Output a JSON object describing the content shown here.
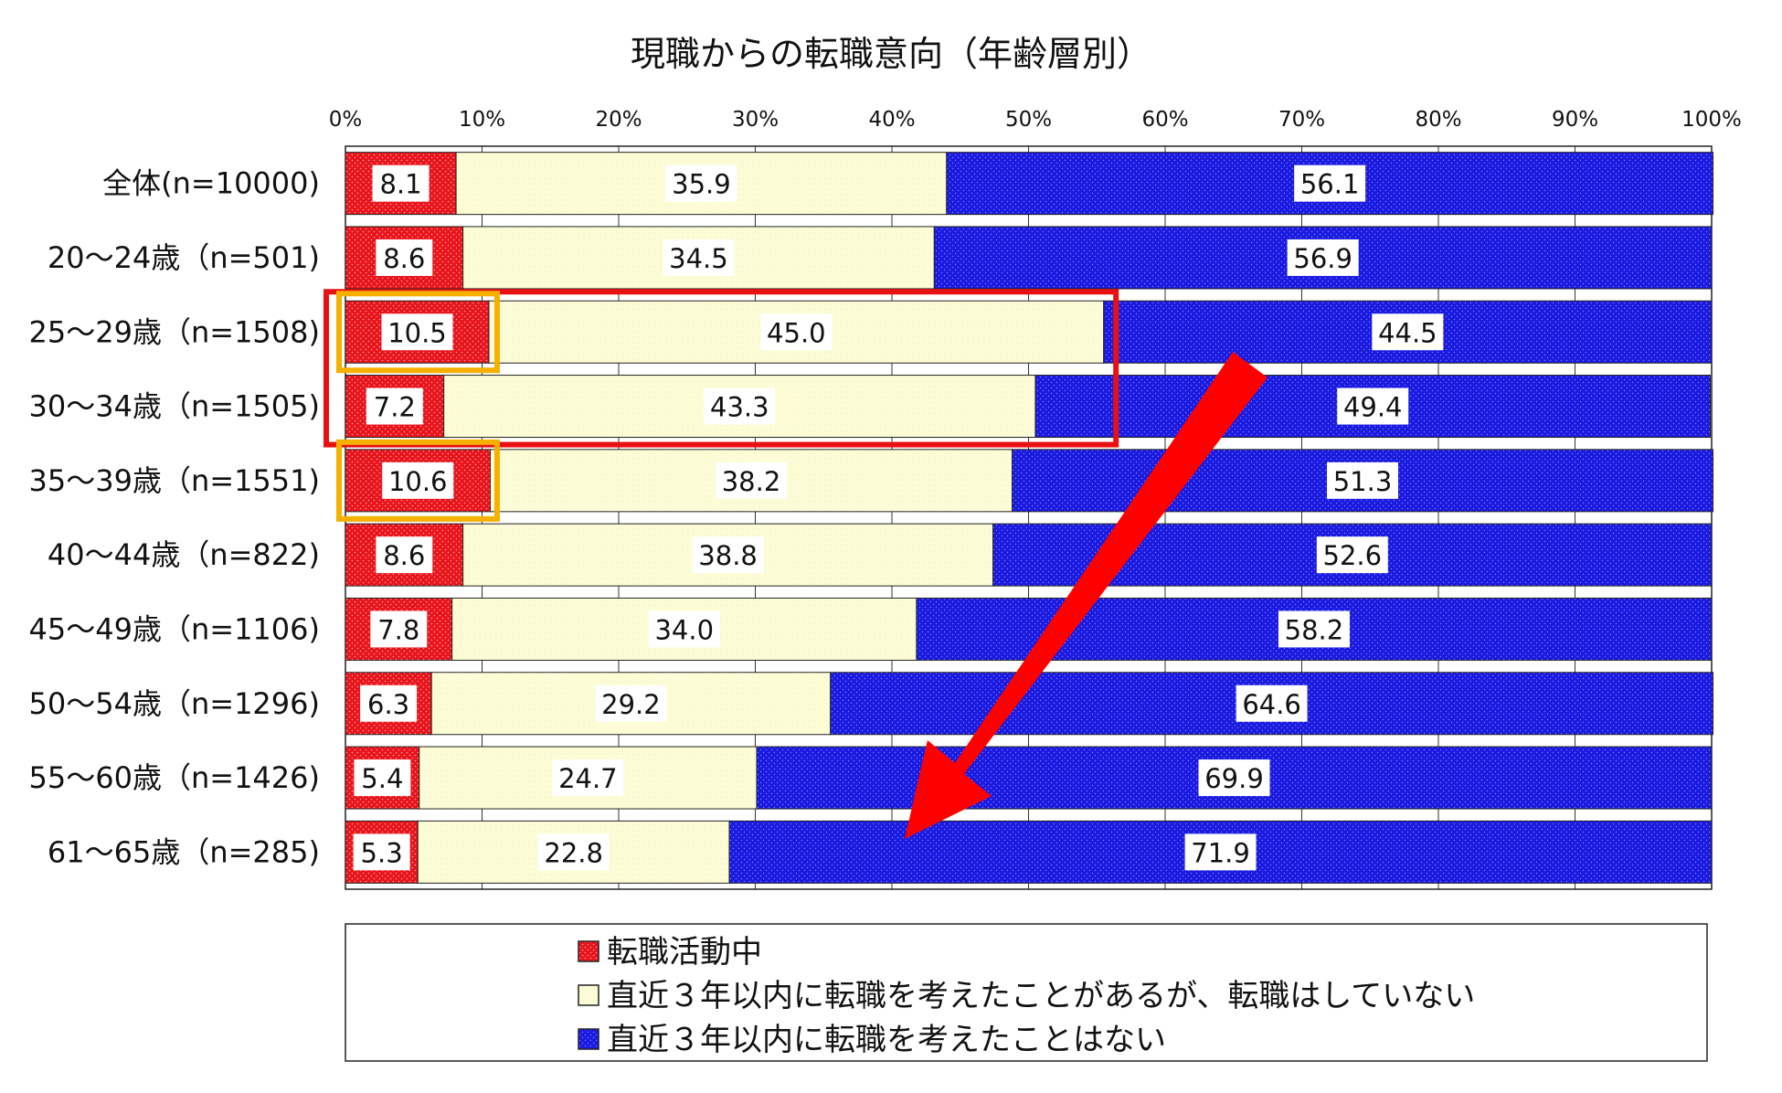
{
  "chart_data": {
    "type": "bar",
    "orientation": "horizontal",
    "stacked": "percent",
    "title": "現職からの転職意向（年齢層別）",
    "categories": [
      "全体(n=10000)",
      "20～24歳（n=501)",
      "25～29歳（n=1508)",
      "30～34歳（n=1505)",
      "35～39歳（n=1551)",
      "40～44歳（n=822)",
      "45～49歳（n=1106)",
      "50～54歳（n=1296)",
      "55～60歳（n=1426)",
      "61～65歳（n=285)"
    ],
    "x_ticks": [
      "0%",
      "10%",
      "20%",
      "30%",
      "40%",
      "50%",
      "60%",
      "70%",
      "80%",
      "90%",
      "100%"
    ],
    "xlim": [
      0,
      100
    ],
    "series": [
      {
        "name": "転職活動中",
        "color": "#e8141c",
        "values": [
          8.1,
          8.6,
          10.5,
          7.2,
          10.6,
          8.6,
          7.8,
          6.3,
          5.4,
          5.3
        ],
        "labels": [
          "8.1",
          "8.6",
          "10.5",
          "7.2",
          "10.6",
          "8.6",
          "7.8",
          "6.3",
          "5.4",
          "5.3"
        ]
      },
      {
        "name": "直近３年以内に転職を考えたことがあるが、転職はしていない",
        "color": "#fcfcd6",
        "values": [
          35.9,
          34.5,
          45.0,
          43.3,
          38.2,
          38.8,
          34.0,
          29.2,
          24.7,
          22.8
        ],
        "labels": [
          "35.9",
          "34.5",
          "45.0",
          "43.3",
          "38.2",
          "38.8",
          "34.0",
          "29.2",
          "24.7",
          "22.8"
        ]
      },
      {
        "name": "直近３年以内に転職を考えたことはない",
        "color": "#1a1ae0",
        "values": [
          56.1,
          56.9,
          44.5,
          49.4,
          51.3,
          52.6,
          58.2,
          64.6,
          69.9,
          71.9
        ],
        "labels": [
          "56.1",
          "56.9",
          "44.5",
          "49.4",
          "51.3",
          "52.6",
          "58.2",
          "64.6",
          "69.9",
          "71.9"
        ]
      }
    ],
    "legend_position": "bottom",
    "annotations": {
      "highlight_red_box_rows": [
        2,
        3
      ],
      "highlight_orange_box_rows": [
        2,
        4
      ],
      "arrow_color": "#ff0000",
      "box_red_color": "#e81010",
      "box_orange_color": "#f5b000"
    }
  }
}
